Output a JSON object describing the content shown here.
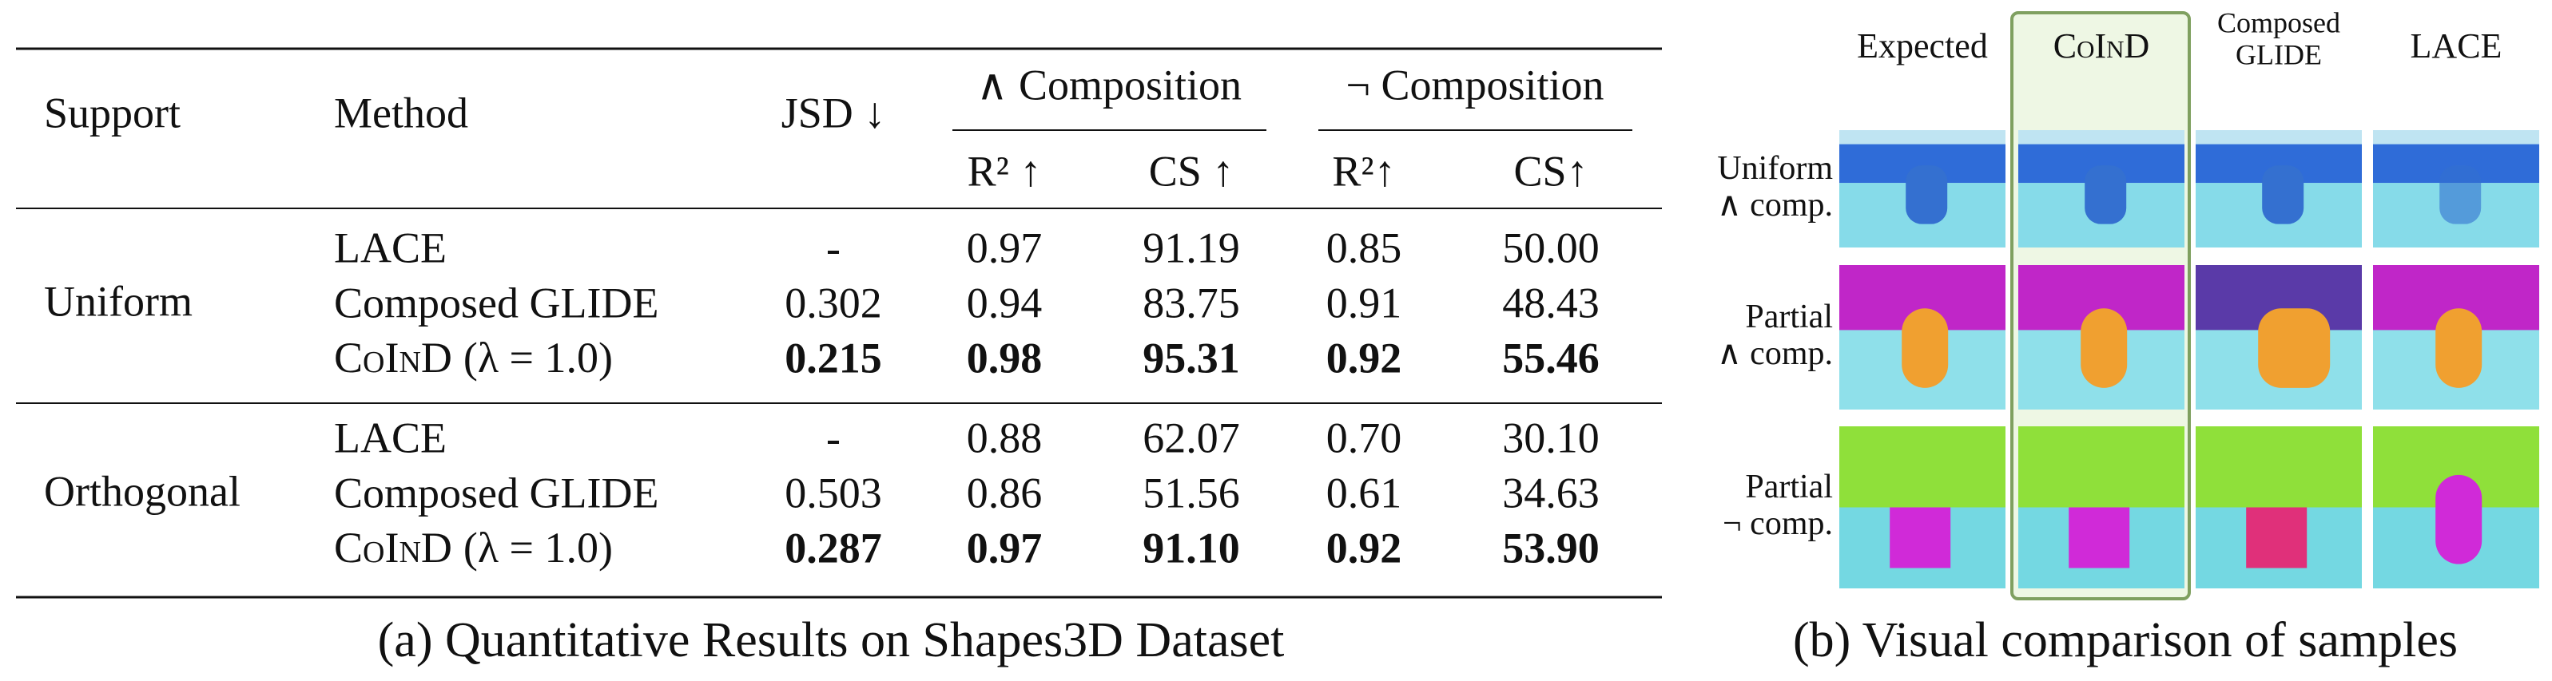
{
  "table": {
    "headers": {
      "support": "Support",
      "method": "Method",
      "jsd": "JSD ↓",
      "and": "∧ Composition",
      "not": "¬ Composition",
      "sub": [
        "R² ↑",
        "CS ↑",
        "R²↑",
        "CS↑"
      ]
    },
    "groups": [
      {
        "support": "Uniform",
        "rows": [
          {
            "method": "LACE",
            "cells": [
              "-",
              "0.97",
              "91.19",
              "0.85",
              "50.00"
            ],
            "bold": false
          },
          {
            "method": "Composed GLIDE",
            "cells": [
              "0.302",
              "0.94",
              "83.75",
              "0.91",
              "48.43"
            ],
            "bold": false
          },
          {
            "method": "CoInD",
            "method_suffix": "(λ = 1.0)",
            "cells": [
              "0.215",
              "0.98",
              "95.31",
              "0.92",
              "55.46"
            ],
            "bold": true
          }
        ]
      },
      {
        "support": "Orthogonal",
        "rows": [
          {
            "method": "LACE",
            "cells": [
              "-",
              "0.88",
              "62.07",
              "0.70",
              "30.10"
            ],
            "bold": false
          },
          {
            "method": "Composed GLIDE",
            "cells": [
              "0.503",
              "0.86",
              "51.56",
              "0.61",
              "34.63"
            ],
            "bold": false
          },
          {
            "method": "CoInD",
            "method_suffix": "(λ = 1.0)",
            "cells": [
              "0.287",
              "0.97",
              "91.10",
              "0.92",
              "53.90"
            ],
            "bold": true
          }
        ]
      }
    ],
    "caption": "(a) Quantitative Results on Shapes3D Dataset"
  },
  "panel_b": {
    "columns": [
      {
        "lines": [
          "Expected"
        ]
      },
      {
        "lines": [
          "CoInD"
        ],
        "highlight": true
      },
      {
        "lines": [
          "Composed",
          "GLIDE"
        ]
      },
      {
        "lines": [
          "LACE"
        ]
      }
    ],
    "rows": [
      {
        "lines": [
          "Uniform",
          "∧ comp."
        ]
      },
      {
        "lines": [
          "Partial",
          "∧ comp."
        ]
      },
      {
        "lines": [
          "Partial",
          "¬ comp."
        ]
      }
    ],
    "caption": "(b) Visual comparison of samples"
  }
}
